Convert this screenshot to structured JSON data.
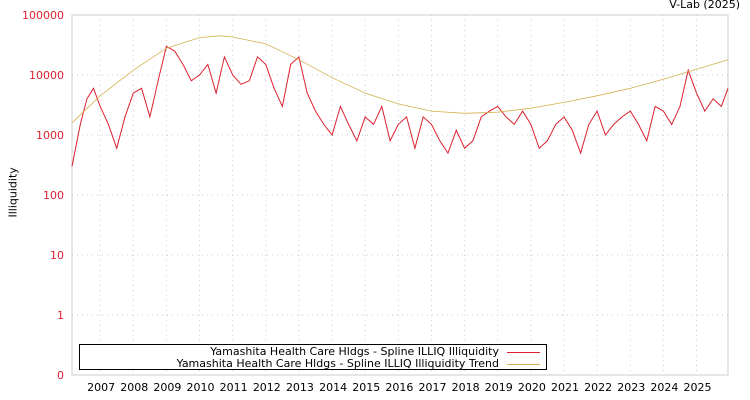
{
  "credit": "V-Lab (2025)",
  "colors": {
    "series": "#dd1f2f",
    "trend": "#d4b14e",
    "ytick": "#dd1f2f",
    "grid": "#cccccc"
  },
  "chart_data": {
    "type": "line",
    "ylabel": "Illiquidity",
    "yscale": "log",
    "yticks": [
      "100000",
      "10000",
      "1000",
      "100",
      "10",
      "1",
      "0"
    ],
    "ytick_values": [
      100000,
      10000,
      1000,
      100,
      10,
      1,
      0
    ],
    "xlim": [
      2006.15,
      2025.95
    ],
    "xticks": [
      "2007",
      "2008",
      "2009",
      "2010",
      "2011",
      "2012",
      "2013",
      "2014",
      "2015",
      "2016",
      "2017",
      "2018",
      "2019",
      "2020",
      "2021",
      "2022",
      "2023",
      "2024",
      "2025"
    ],
    "grid": true,
    "legend_position": "bottom-left",
    "series": [
      {
        "name": "Yamashita Health Care Hldgs - Spline ILLIQ Illiquidity",
        "x": [
          2006.15,
          2006.4,
          2006.6,
          2006.8,
          2007.0,
          2007.25,
          2007.5,
          2007.75,
          2008.0,
          2008.25,
          2008.5,
          2008.75,
          2009.0,
          2009.25,
          2009.5,
          2009.75,
          2010.0,
          2010.25,
          2010.5,
          2010.75,
          2011.0,
          2011.25,
          2011.5,
          2011.75,
          2012.0,
          2012.25,
          2012.5,
          2012.75,
          2013.0,
          2013.25,
          2013.5,
          2013.75,
          2014.0,
          2014.25,
          2014.5,
          2014.75,
          2015.0,
          2015.25,
          2015.5,
          2015.75,
          2016.0,
          2016.25,
          2016.5,
          2016.75,
          2017.0,
          2017.25,
          2017.5,
          2017.75,
          2018.0,
          2018.25,
          2018.5,
          2018.75,
          2019.0,
          2019.25,
          2019.5,
          2019.75,
          2020.0,
          2020.25,
          2020.5,
          2020.75,
          2021.0,
          2021.25,
          2021.5,
          2021.75,
          2022.0,
          2022.25,
          2022.5,
          2022.75,
          2023.0,
          2023.25,
          2023.5,
          2023.75,
          2024.0,
          2024.25,
          2024.5,
          2024.75,
          2025.0,
          2025.25,
          2025.5,
          2025.75,
          2025.95
        ],
        "values": [
          300,
          1500,
          4000,
          6000,
          3000,
          1500,
          600,
          2000,
          5000,
          6000,
          2000,
          8000,
          30000,
          25000,
          15000,
          8000,
          10000,
          15000,
          5000,
          20000,
          10000,
          7000,
          8000,
          20000,
          15000,
          6000,
          3000,
          15000,
          20000,
          5000,
          2500,
          1500,
          1000,
          3000,
          1500,
          800,
          2000,
          1500,
          3000,
          800,
          1500,
          2000,
          600,
          2000,
          1500,
          800,
          500,
          1200,
          600,
          800,
          2000,
          2500,
          3000,
          2000,
          1500,
          2500,
          1500,
          600,
          800,
          1500,
          2000,
          1200,
          500,
          1500,
          2500,
          1000,
          1500,
          2000,
          2500,
          1500,
          800,
          3000,
          2500,
          1500,
          3000,
          12000,
          5000,
          2500,
          4000,
          3000,
          6000
        ]
      },
      {
        "name": "Yamashita Health Care Hldgs - Spline ILLIQ Illiquidity Trend",
        "x": [
          2006.15,
          2007,
          2008,
          2009,
          2010,
          2010.6,
          2011,
          2012,
          2013,
          2014,
          2015,
          2016,
          2017,
          2018,
          2019,
          2020,
          2021,
          2022,
          2023,
          2024,
          2025,
          2025.95
        ],
        "values": [
          1600,
          4500,
          12000,
          28000,
          42000,
          45000,
          43000,
          33000,
          18000,
          9000,
          5000,
          3300,
          2500,
          2300,
          2400,
          2800,
          3500,
          4500,
          6000,
          8500,
          12500,
          18000
        ]
      }
    ]
  }
}
